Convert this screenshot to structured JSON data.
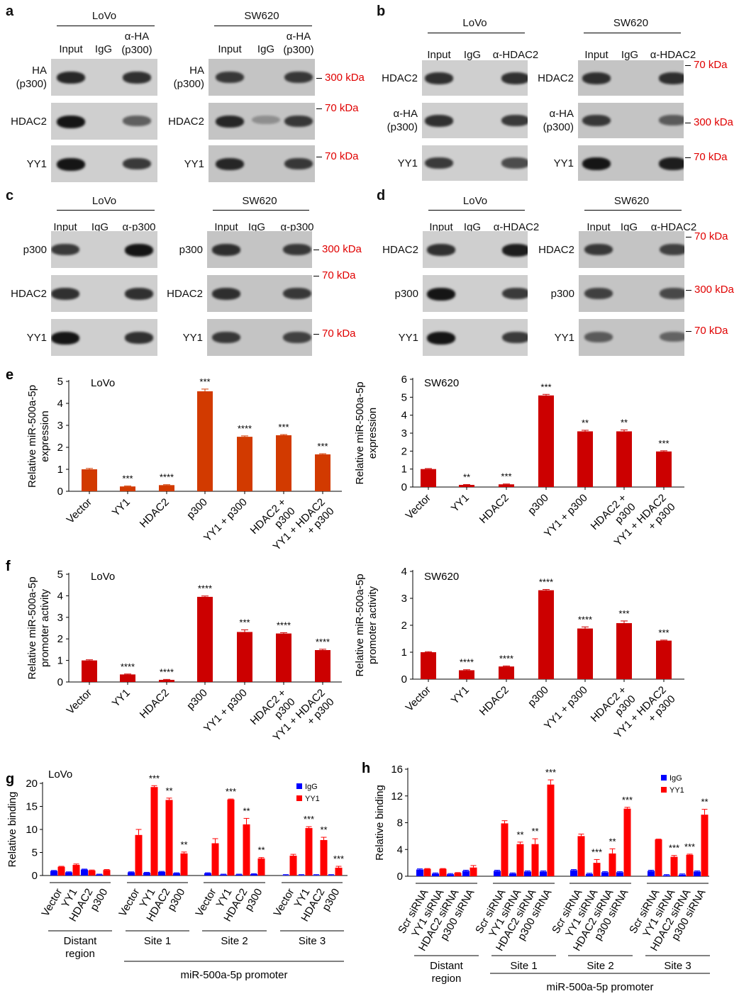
{
  "blots": [
    {
      "letter": "a",
      "groups": [
        {
          "cell_line": "LoVo",
          "columns": [
            "Input",
            "IgG",
            "α-HA\n(p300)"
          ],
          "rows": [
            {
              "label": "HA\n(p300)",
              "bands": [
                0.9,
                0,
                0.85
              ]
            },
            {
              "label": "HDAC2",
              "bands": [
                1,
                0,
                0.6
              ]
            },
            {
              "label": "YY1",
              "bands": [
                1,
                0,
                0.8
              ]
            }
          ],
          "markers": []
        },
        {
          "cell_line": "SW620",
          "columns": [
            "Input",
            "IgG",
            "α-HA\n(p300)"
          ],
          "rows": [
            {
              "label": "HA\n(p300)",
              "bands": [
                0.8,
                0,
                0.8
              ]
            },
            {
              "label": "HDAC2",
              "bands": [
                0.9,
                0.3,
                0.8
              ]
            },
            {
              "label": "YY1",
              "bands": [
                0.9,
                0,
                0.8
              ]
            }
          ],
          "markers": [
            "300 kDa",
            "70 kDa",
            "70 kDa"
          ]
        }
      ]
    },
    {
      "letter": "b",
      "groups": [
        {
          "cell_line": "LoVo",
          "columns": [
            "Input",
            "IgG",
            "α-HDAC2"
          ],
          "rows": [
            {
              "label": "HDAC2",
              "bands": [
                0.85,
                0,
                0.85
              ]
            },
            {
              "label": "α-HA\n(p300)",
              "bands": [
                0.85,
                0,
                0.8
              ]
            },
            {
              "label": "YY1",
              "bands": [
                0.8,
                0,
                0.7
              ]
            }
          ],
          "markers": []
        },
        {
          "cell_line": "SW620",
          "columns": [
            "Input",
            "IgG",
            "α-HDAC2"
          ],
          "rows": [
            {
              "label": "HDAC2",
              "bands": [
                0.85,
                0,
                0.85
              ]
            },
            {
              "label": "α-HA\n(p300)",
              "bands": [
                0.8,
                0,
                0.6
              ]
            },
            {
              "label": "YY1",
              "bands": [
                1,
                0,
                0.95
              ]
            }
          ],
          "markers": [
            "70 kDa",
            "300 kDa",
            "70 kDa"
          ]
        }
      ]
    },
    {
      "letter": "c",
      "groups": [
        {
          "cell_line": "LoVo",
          "columns": [
            "Input",
            "IgG",
            "α-p300"
          ],
          "rows": [
            {
              "label": "p300",
              "bands": [
                0.8,
                0,
                1
              ]
            },
            {
              "label": "HDAC2",
              "bands": [
                0.85,
                0,
                0.85
              ]
            },
            {
              "label": "YY1",
              "bands": [
                1,
                0,
                0.85
              ]
            }
          ],
          "markers": []
        },
        {
          "cell_line": "SW620",
          "columns": [
            "Input",
            "IgG",
            "α-p300"
          ],
          "rows": [
            {
              "label": "p300",
              "bands": [
                0.85,
                0,
                0.8
              ]
            },
            {
              "label": "HDAC2",
              "bands": [
                0.85,
                0,
                0.8
              ]
            },
            {
              "label": "YY1",
              "bands": [
                0.8,
                0,
                0.75
              ]
            }
          ],
          "markers": [
            "300 kDa",
            "70 kDa",
            "70 kDa"
          ]
        }
      ]
    },
    {
      "letter": "d",
      "groups": [
        {
          "cell_line": "LoVo",
          "columns": [
            "Input",
            "IgG",
            "α-HDAC2"
          ],
          "rows": [
            {
              "label": "HDAC2",
              "bands": [
                0.85,
                0,
                0.95
              ]
            },
            {
              "label": "p300",
              "bands": [
                1,
                0,
                0.8
              ]
            },
            {
              "label": "YY1",
              "bands": [
                1,
                0,
                0.8
              ]
            }
          ],
          "markers": []
        },
        {
          "cell_line": "SW620",
          "columns": [
            "Input",
            "IgG",
            "α-HDAC2"
          ],
          "rows": [
            {
              "label": "HDAC2",
              "bands": [
                0.8,
                0,
                0.75
              ]
            },
            {
              "label": "p300",
              "bands": [
                0.75,
                0,
                0.7
              ]
            },
            {
              "label": "YY1",
              "bands": [
                0.6,
                0,
                0.55
              ]
            }
          ],
          "markers": [
            "70 kDa",
            "300 kDa",
            "70 kDa"
          ]
        }
      ]
    }
  ],
  "chart_data": [
    {
      "panel": "e",
      "type": "bar",
      "title": "LoVo",
      "ylabel": "Relative miR-500a-5p\nexpression",
      "ylim": [
        0,
        5
      ],
      "yticks": [
        0,
        1,
        2,
        3,
        4,
        5
      ],
      "color": "#d23a00",
      "categories": [
        "Vector",
        "YY1",
        "HDAC2",
        "p300",
        "YY1 + p300",
        "HDAC2 +\np300",
        "YY1 + HDAC2\n+ p300"
      ],
      "values": [
        1.0,
        0.22,
        0.28,
        4.55,
        2.48,
        2.55,
        1.68
      ],
      "errors": [
        0.04,
        0.02,
        0.02,
        0.1,
        0.04,
        0.03,
        0.03
      ],
      "significance": [
        "",
        "***",
        "****",
        "***",
        "****",
        "***",
        "***"
      ]
    },
    {
      "panel": "e",
      "type": "bar",
      "title": "SW620",
      "ylabel": "Relative miR-500a-5p\nexpression",
      "ylim": [
        0,
        6
      ],
      "yticks": [
        0,
        1,
        2,
        3,
        4,
        5,
        6
      ],
      "color": "#cc0000",
      "categories": [
        "Vector",
        "YY1",
        "HDAC2",
        "p300",
        "YY1 + p300",
        "HDAC2 +\np300",
        "YY1 + HDAC2\n+ p300"
      ],
      "values": [
        1.0,
        0.12,
        0.15,
        5.1,
        3.1,
        3.1,
        1.98
      ],
      "errors": [
        0.03,
        0.02,
        0.02,
        0.06,
        0.06,
        0.08,
        0.04
      ],
      "significance": [
        "",
        "**",
        "***",
        "***",
        "**",
        "**",
        "***"
      ]
    },
    {
      "panel": "f",
      "type": "bar",
      "title": "LoVo",
      "ylabel": "Relative miR-500a-5p\npromoter activity",
      "ylim": [
        0,
        5
      ],
      "yticks": [
        0,
        1,
        2,
        3,
        4,
        5
      ],
      "color": "#cc0000",
      "categories": [
        "Vector",
        "YY1",
        "HDAC2",
        "p300",
        "YY1 + p300",
        "HDAC2 +\np300",
        "YY1 + HDAC2\n+ p300"
      ],
      "values": [
        1.0,
        0.35,
        0.1,
        3.95,
        2.32,
        2.25,
        1.48
      ],
      "errors": [
        0.03,
        0.02,
        0.02,
        0.04,
        0.1,
        0.04,
        0.04
      ],
      "significance": [
        "",
        "****",
        "****",
        "****",
        "***",
        "****",
        "****"
      ]
    },
    {
      "panel": "f",
      "type": "bar",
      "title": "SW620",
      "ylabel": "Relative miR-500a-5p\npromoter activity",
      "ylim": [
        0,
        4
      ],
      "yticks": [
        0,
        1,
        2,
        3,
        4
      ],
      "color": "#cc0000",
      "categories": [
        "Vector",
        "YY1",
        "HDAC2",
        "p300",
        "YY1 + p300",
        "HDAC2 +\np300",
        "YY1 + HDAC2\n+ p300"
      ],
      "values": [
        1.0,
        0.33,
        0.47,
        3.3,
        1.88,
        2.08,
        1.43
      ],
      "errors": [
        0.02,
        0.02,
        0.02,
        0.03,
        0.06,
        0.08,
        0.02
      ],
      "significance": [
        "",
        "****",
        "****",
        "****",
        "****",
        "***",
        "***"
      ]
    },
    {
      "panel": "g",
      "type": "grouped-bar",
      "title": "LoVo",
      "ylabel": "Relative binding",
      "ylim": [
        0,
        20
      ],
      "yticks": [
        0,
        5,
        10,
        15,
        20
      ],
      "conditions": [
        "Vector",
        "YY1",
        "HDAC2",
        "p300"
      ],
      "regions": [
        "Distant\nregion",
        "Site 1",
        "Site 2",
        "Site 3"
      ],
      "promoter_label": "miR-500a-5p promoter",
      "legend_position": "top-right",
      "series": [
        {
          "name": "IgG",
          "color": "#0000ff",
          "values": [
            [
              1.0,
              0.7,
              1.3,
              0.2
            ],
            [
              0.7,
              0.6,
              0.8,
              0.5
            ],
            [
              0.5,
              0.2,
              0.2,
              0.3
            ],
            [
              0.1,
              0.1,
              0.1,
              0.1
            ]
          ]
        },
        {
          "name": "YY1",
          "color": "#ff0000",
          "values": [
            [
              1.9,
              2.3,
              1.1,
              1.2
            ],
            [
              8.8,
              19.2,
              16.4,
              4.8
            ],
            [
              7.0,
              16.5,
              11.1,
              3.7
            ],
            [
              4.3,
              10.3,
              7.7,
              1.7
            ]
          ],
          "errors": [
            [
              0.1,
              0.2,
              0.1,
              0.1
            ],
            [
              1.2,
              0.3,
              0.4,
              0.3
            ],
            [
              1.0,
              0.1,
              1.3,
              0.2
            ],
            [
              0.3,
              0.3,
              0.6,
              0.3
            ]
          ],
          "significance": [
            [
              "",
              "",
              "",
              ""
            ],
            [
              "",
              "***",
              "**",
              "**"
            ],
            [
              "",
              "***",
              "**",
              "**"
            ],
            [
              "",
              "***",
              "**",
              "***"
            ]
          ]
        }
      ]
    },
    {
      "panel": "h",
      "type": "grouped-bar",
      "title": "",
      "ylabel": "Relative binding",
      "ylim": [
        0,
        16
      ],
      "yticks": [
        0,
        4,
        8,
        12,
        16
      ],
      "conditions": [
        "Scr siRNA",
        "YY1 siRNA",
        "HDAC2 siRNA",
        "p300 siRNA"
      ],
      "regions": [
        "Distant\nregion",
        "Site 1",
        "Site 2",
        "Site 3"
      ],
      "promoter_label": "miR-500a-5p promoter",
      "legend_position": "top-right",
      "series": [
        {
          "name": "IgG",
          "color": "#0000ff",
          "values": [
            [
              1.0,
              0.4,
              0.3,
              0.8
            ],
            [
              0.8,
              0.4,
              0.7,
              0.7
            ],
            [
              0.9,
              0.35,
              0.6,
              0.6
            ],
            [
              0.8,
              0.15,
              0.25,
              0.7
            ]
          ]
        },
        {
          "name": "YY1",
          "color": "#ff0000",
          "values": [
            [
              1.1,
              1.1,
              0.5,
              1.3
            ],
            [
              7.9,
              4.8,
              4.8,
              13.7
            ],
            [
              6.0,
              2.0,
              3.4,
              10.1
            ],
            [
              5.5,
              2.9,
              3.2,
              9.2
            ]
          ],
          "errors": [
            [
              0.05,
              0.05,
              0.05,
              0.3
            ],
            [
              0.4,
              0.3,
              0.8,
              0.7
            ],
            [
              0.3,
              0.5,
              0.7,
              0.2
            ],
            [
              0.05,
              0.2,
              0.1,
              0.8
            ]
          ],
          "significance": [
            [
              "",
              "",
              "",
              ""
            ],
            [
              "",
              "**",
              "**",
              "***"
            ],
            [
              "",
              "***",
              "**",
              "***"
            ],
            [
              "",
              "***",
              "***",
              "**"
            ]
          ]
        }
      ]
    }
  ]
}
